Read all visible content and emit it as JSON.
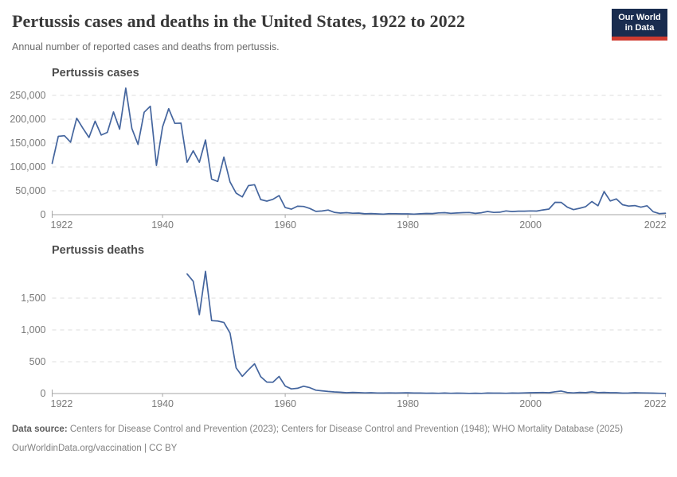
{
  "header": {
    "title": "Pertussis cases and deaths in the United States, 1922 to 2022",
    "subtitle": "Annual number of reported cases and deaths from pertussis.",
    "logo": {
      "line1": "Our World",
      "line2": "in Data",
      "bg_color": "#192c4f",
      "accent_color": "#cf3b30"
    }
  },
  "chart_data": [
    {
      "id": "cases",
      "type": "line",
      "title": "Pertussis cases",
      "line_color": "#44659e",
      "grid": "dashed-horizontal",
      "xlim": [
        1922,
        2022
      ],
      "ylim": [
        0,
        250000
      ],
      "xticks": [
        1922,
        1940,
        1960,
        1980,
        2000,
        2022
      ],
      "xtick_labels": [
        "1922",
        "1940",
        "1960",
        "1980",
        "2000",
        "2022"
      ],
      "yticks": [
        0,
        50000,
        100000,
        150000,
        200000,
        250000
      ],
      "ytick_labels": [
        "0",
        "50,000",
        "100,000",
        "150,000",
        "200,000",
        "250,000"
      ],
      "years": [
        1922,
        1923,
        1924,
        1925,
        1926,
        1927,
        1928,
        1929,
        1930,
        1931,
        1932,
        1933,
        1934,
        1935,
        1936,
        1937,
        1938,
        1939,
        1940,
        1941,
        1942,
        1943,
        1944,
        1945,
        1946,
        1947,
        1948,
        1949,
        1950,
        1951,
        1952,
        1953,
        1954,
        1955,
        1956,
        1957,
        1958,
        1959,
        1960,
        1961,
        1962,
        1963,
        1964,
        1965,
        1966,
        1967,
        1968,
        1969,
        1970,
        1971,
        1972,
        1973,
        1974,
        1975,
        1976,
        1977,
        1978,
        1979,
        1980,
        1981,
        1982,
        1983,
        1984,
        1985,
        1986,
        1987,
        1988,
        1989,
        1990,
        1991,
        1992,
        1993,
        1994,
        1995,
        1996,
        1997,
        1998,
        1999,
        2000,
        2001,
        2002,
        2003,
        2004,
        2005,
        2006,
        2007,
        2008,
        2009,
        2010,
        2011,
        2012,
        2013,
        2014,
        2015,
        2016,
        2017,
        2018,
        2019,
        2020,
        2021,
        2022
      ],
      "values": [
        107473,
        164191,
        165418,
        152003,
        202210,
        181411,
        161799,
        195952,
        166914,
        172559,
        215343,
        179135,
        265269,
        180518,
        147237,
        214652,
        227319,
        103188,
        183866,
        222202,
        191383,
        191890,
        109873,
        133792,
        109860,
        156517,
        74715,
        69479,
        120718,
        68687,
        45030,
        37129,
        60886,
        62786,
        31732,
        28295,
        32148,
        40005,
        14809,
        11468,
        17749,
        17135,
        13005,
        6799,
        7717,
        9718,
        4810,
        3285,
        4249,
        3036,
        3287,
        1759,
        2402,
        1738,
        1010,
        2177,
        2063,
        1623,
        1730,
        1248,
        1895,
        2463,
        2276,
        3589,
        4195,
        2823,
        3450,
        4157,
        4570,
        2719,
        4083,
        6586,
        4617,
        5137,
        7796,
        6564,
        7405,
        7298,
        7867,
        7580,
        9771,
        11647,
        25827,
        25616,
        15632,
        10454,
        13278,
        16858,
        27550,
        18719,
        48277,
        28639,
        32971,
        20762,
        17972,
        18975,
        15609,
        18617,
        6124,
        2116,
        3044
      ]
    },
    {
      "id": "deaths",
      "type": "line",
      "title": "Pertussis deaths",
      "line_color": "#44659e",
      "grid": "dashed-horizontal",
      "xlim": [
        1922,
        2022
      ],
      "ylim": [
        0,
        1500
      ],
      "xticks": [
        1922,
        1940,
        1960,
        1980,
        2000,
        2022
      ],
      "xtick_labels": [
        "1922",
        "1940",
        "1960",
        "1980",
        "2000",
        "2022"
      ],
      "yticks": [
        0,
        500,
        1000,
        1500
      ],
      "ytick_labels": [
        "0",
        "500",
        "1,000",
        "1,500"
      ],
      "years": [
        1944,
        1945,
        1946,
        1947,
        1948,
        1949,
        1950,
        1951,
        1952,
        1953,
        1954,
        1955,
        1956,
        1957,
        1958,
        1959,
        1960,
        1961,
        1962,
        1963,
        1964,
        1965,
        1966,
        1967,
        1968,
        1969,
        1970,
        1971,
        1972,
        1973,
        1974,
        1975,
        1976,
        1977,
        1978,
        1979,
        1980,
        1981,
        1982,
        1983,
        1984,
        1985,
        1986,
        1987,
        1988,
        1989,
        1990,
        1991,
        1992,
        1993,
        1994,
        1995,
        1996,
        1997,
        1998,
        1999,
        2000,
        2001,
        2002,
        2003,
        2004,
        2005,
        2006,
        2007,
        2008,
        2009,
        2010,
        2011,
        2012,
        2013,
        2014,
        2015,
        2016,
        2017,
        2018,
        2019,
        2020,
        2021,
        2022
      ],
      "values": [
        1880,
        1765,
        1240,
        1920,
        1146,
        1140,
        1118,
        951,
        402,
        270,
        373,
        467,
        266,
        180,
        177,
        269,
        118,
        72,
        83,
        115,
        93,
        53,
        42,
        33,
        25,
        20,
        12,
        18,
        15,
        10,
        12,
        9,
        8,
        10,
        8,
        10,
        11,
        8,
        7,
        5,
        6,
        4,
        8,
        4,
        6,
        5,
        2,
        5,
        3,
        7,
        6,
        6,
        4,
        8,
        6,
        10,
        12,
        14,
        16,
        13,
        27,
        39,
        16,
        10,
        18,
        14,
        26,
        15,
        18,
        12,
        13,
        6,
        7,
        13,
        10,
        9,
        6,
        4,
        3
      ]
    }
  ],
  "footer": {
    "source_label": "Data source:",
    "source_text": " Centers for Disease Control and Prevention (2023); Centers for Disease Control and Prevention (1948); WHO Mortality Database (2025)",
    "license_text": "OurWorldinData.org/vaccination | CC BY"
  }
}
